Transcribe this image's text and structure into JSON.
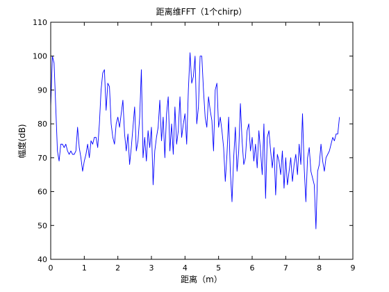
{
  "chart_data": {
    "type": "line",
    "title": "距离维FFT（1个chirp）",
    "x_label": "距离（m）",
    "y_label": "幅度(dB)",
    "color": "#0000ff",
    "xlim": [
      0,
      9
    ],
    "xticks": [
      0,
      1,
      2,
      3,
      4,
      5,
      6,
      7,
      8,
      9
    ],
    "ylim": [
      40,
      110
    ],
    "yticks": [
      40,
      50,
      60,
      70,
      80,
      90,
      100,
      110
    ],
    "x": [
      0,
      0.05,
      0.1,
      0.15,
      0.2,
      0.25,
      0.3,
      0.35,
      0.4,
      0.45,
      0.5,
      0.55,
      0.6,
      0.65,
      0.7,
      0.75,
      0.8,
      0.85,
      0.9,
      0.95,
      1,
      1.05,
      1.1,
      1.15,
      1.2,
      1.25,
      1.3,
      1.35,
      1.4,
      1.45,
      1.5,
      1.55,
      1.6,
      1.65,
      1.7,
      1.75,
      1.8,
      1.85,
      1.9,
      1.95,
      2,
      2.05,
      2.1,
      2.15,
      2.2,
      2.25,
      2.3,
      2.35,
      2.4,
      2.45,
      2.5,
      2.55,
      2.6,
      2.65,
      2.7,
      2.75,
      2.8,
      2.85,
      2.9,
      2.95,
      3,
      3.05,
      3.1,
      3.15,
      3.2,
      3.25,
      3.3,
      3.35,
      3.4,
      3.45,
      3.5,
      3.55,
      3.6,
      3.65,
      3.7,
      3.75,
      3.8,
      3.85,
      3.9,
      3.95,
      4,
      4.05,
      4.1,
      4.15,
      4.2,
      4.25,
      4.3,
      4.35,
      4.4,
      4.45,
      4.5,
      4.55,
      4.6,
      4.65,
      4.7,
      4.75,
      4.8,
      4.85,
      4.9,
      4.95,
      5,
      5.05,
      5.1,
      5.15,
      5.2,
      5.25,
      5.3,
      5.35,
      5.4,
      5.45,
      5.5,
      5.55,
      5.6,
      5.65,
      5.7,
      5.75,
      5.8,
      5.85,
      5.9,
      5.95,
      6,
      6.05,
      6.1,
      6.15,
      6.2,
      6.25,
      6.3,
      6.35,
      6.4,
      6.45,
      6.5,
      6.55,
      6.6,
      6.65,
      6.7,
      6.75,
      6.8,
      6.85,
      6.9,
      6.95,
      7,
      7.05,
      7.1,
      7.15,
      7.2,
      7.25,
      7.3,
      7.35,
      7.4,
      7.45,
      7.5,
      7.55,
      7.6,
      7.65,
      7.7,
      7.75,
      7.8,
      7.85,
      7.9,
      7.95,
      8,
      8.05,
      8.1,
      8.15,
      8.2,
      8.25,
      8.3,
      8.35,
      8.4,
      8.45,
      8.5,
      8.55,
      8.6
    ],
    "values": [
      85,
      100,
      98,
      85,
      72,
      69,
      74,
      74,
      73,
      74,
      72,
      71,
      72,
      71,
      71,
      72,
      79,
      73,
      70,
      66,
      69,
      71,
      74,
      70,
      75,
      74,
      76,
      76,
      73,
      80,
      90,
      95,
      96,
      84,
      92,
      91,
      80,
      76,
      74,
      80,
      82,
      79,
      83,
      87,
      77,
      72,
      77,
      68,
      73,
      79,
      85,
      72,
      75,
      82,
      96,
      70,
      76,
      69,
      78,
      73,
      79,
      62,
      72,
      76,
      79,
      87,
      75,
      82,
      70,
      83,
      88,
      72,
      80,
      71,
      85,
      74,
      78,
      88,
      76,
      80,
      83,
      74,
      90,
      101,
      92,
      94,
      100,
      80,
      85,
      100,
      100,
      90,
      82,
      79,
      88,
      84,
      81,
      72,
      90,
      92,
      79,
      82,
      78,
      73,
      63,
      71,
      82,
      66,
      57,
      70,
      79,
      66,
      72,
      86,
      75,
      68,
      70,
      78,
      80,
      72,
      76,
      69,
      74,
      67,
      78,
      72,
      65,
      80,
      58,
      76,
      78,
      72,
      67,
      73,
      59,
      71,
      69,
      65,
      72,
      61,
      70,
      62,
      66,
      70,
      63,
      68,
      71,
      65,
      74,
      68,
      83,
      67,
      57,
      70,
      73,
      66,
      64,
      62,
      49,
      66,
      68,
      74,
      69,
      66,
      70,
      71,
      72,
      74,
      76,
      75,
      77,
      77,
      82
    ]
  }
}
